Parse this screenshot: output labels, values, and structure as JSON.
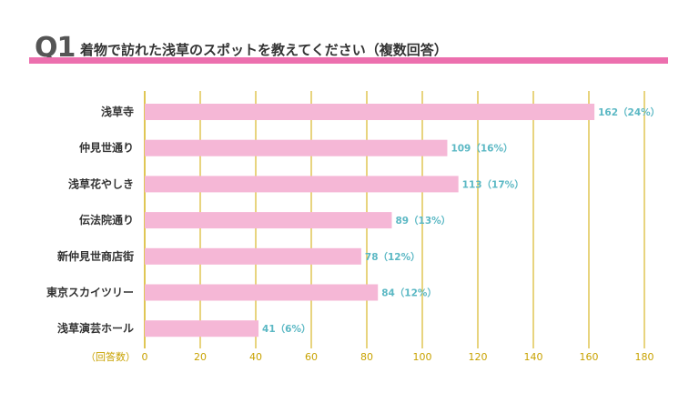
{
  "header": {
    "q_label": "Q1",
    "question": "着物で訪れた浅草のスポットを教えてください（複数回答）"
  },
  "colors": {
    "accent": "#ec6fae",
    "bar": "#f5b7d6",
    "grid": "#d8b82a",
    "value_label": "#5bb8c4",
    "tick_label": "#c8a200"
  },
  "chart_data": {
    "type": "bar",
    "orientation": "horizontal",
    "categories": [
      "浅草寺",
      "仲見世通り",
      "浅草花やしき",
      "伝法院通り",
      "新仲見世商店街",
      "東京スカイツリー",
      "浅草演芸ホール"
    ],
    "values": [
      162,
      109,
      113,
      89,
      78,
      84,
      41
    ],
    "value_labels": [
      "162（24%）",
      "109（16%）",
      "113（17%）",
      "89（13%）",
      "78（12%）",
      "84（12%）",
      "41（6%）"
    ],
    "x_ticks": [
      0,
      20,
      40,
      60,
      80,
      100,
      120,
      140,
      160,
      180
    ],
    "xlim": [
      0,
      180
    ],
    "xlabel": "（回答数）",
    "grid": true,
    "legend": "none"
  }
}
